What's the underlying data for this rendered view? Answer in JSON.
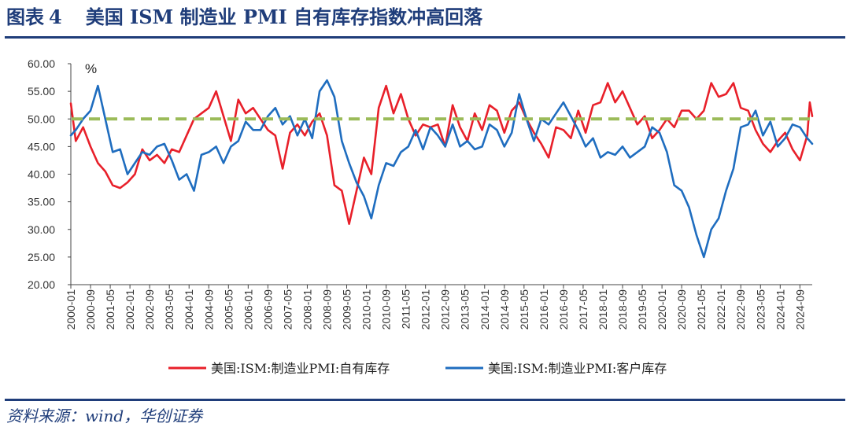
{
  "title": {
    "prefix": "图表",
    "number": "4",
    "text": "美国 ISM 制造业 PMI 自有库存指数冲高回落"
  },
  "source": "资料来源：wind，华创证券",
  "chart_data": {
    "type": "line",
    "unit_label": "%",
    "ylim": [
      20,
      60
    ],
    "y_ticks": [
      "20.00",
      "25.00",
      "30.00",
      "35.00",
      "40.00",
      "45.00",
      "50.00",
      "55.00",
      "60.00"
    ],
    "x_start": "2000-01",
    "x_end": "2025-02",
    "x_ticks": [
      "2000-01",
      "2000-09",
      "2001-05",
      "2002-01",
      "2002-09",
      "2003-05",
      "2004-01",
      "2004-09",
      "2005-05",
      "2006-01",
      "2006-09",
      "2007-05",
      "2008-01",
      "2008-09",
      "2009-05",
      "2010-01",
      "2010-09",
      "2011-05",
      "2012-01",
      "2012-09",
      "2013-05",
      "2014-01",
      "2014-09",
      "2015-05",
      "2016-01",
      "2016-09",
      "2017-05",
      "2018-01",
      "2018-09",
      "2019-05",
      "2020-01",
      "2020-09",
      "2021-05",
      "2022-01",
      "2022-09",
      "2023-05",
      "2024-01",
      "2024-09"
    ],
    "reference_line": {
      "value": 50,
      "color": "#9bbb59",
      "style": "dashed"
    },
    "legend_position": "bottom",
    "series": [
      {
        "name": "美国:ISM:制造业PMI:自有库存",
        "color": "#e8202a",
        "points": [
          [
            "2000-01",
            52.8
          ],
          [
            "2000-03",
            46.0
          ],
          [
            "2000-06",
            48.5
          ],
          [
            "2000-09",
            45.0
          ],
          [
            "2000-12",
            42.0
          ],
          [
            "2001-03",
            40.5
          ],
          [
            "2001-06",
            38.0
          ],
          [
            "2001-09",
            37.5
          ],
          [
            "2001-12",
            38.5
          ],
          [
            "2002-03",
            40.0
          ],
          [
            "2002-06",
            44.5
          ],
          [
            "2002-09",
            42.5
          ],
          [
            "2002-12",
            43.5
          ],
          [
            "2003-03",
            42.0
          ],
          [
            "2003-06",
            44.5
          ],
          [
            "2003-09",
            44.0
          ],
          [
            "2003-12",
            47.0
          ],
          [
            "2004-03",
            50.0
          ],
          [
            "2004-06",
            51.0
          ],
          [
            "2004-09",
            52.0
          ],
          [
            "2004-12",
            55.0
          ],
          [
            "2005-03",
            50.5
          ],
          [
            "2005-06",
            46.0
          ],
          [
            "2005-09",
            53.5
          ],
          [
            "2005-12",
            51.0
          ],
          [
            "2006-03",
            52.0
          ],
          [
            "2006-06",
            50.0
          ],
          [
            "2006-09",
            48.0
          ],
          [
            "2006-12",
            47.0
          ],
          [
            "2007-03",
            41.0
          ],
          [
            "2007-06",
            47.5
          ],
          [
            "2007-09",
            49.0
          ],
          [
            "2007-12",
            47.0
          ],
          [
            "2008-03",
            49.5
          ],
          [
            "2008-06",
            51.0
          ],
          [
            "2008-09",
            47.0
          ],
          [
            "2008-12",
            38.0
          ],
          [
            "2009-03",
            37.0
          ],
          [
            "2009-06",
            31.0
          ],
          [
            "2009-09",
            37.0
          ],
          [
            "2009-12",
            43.0
          ],
          [
            "2010-03",
            40.0
          ],
          [
            "2010-06",
            52.0
          ],
          [
            "2010-09",
            56.0
          ],
          [
            "2010-12",
            51.0
          ],
          [
            "2011-03",
            54.5
          ],
          [
            "2011-06",
            50.0
          ],
          [
            "2011-09",
            47.0
          ],
          [
            "2011-12",
            49.0
          ],
          [
            "2012-03",
            48.5
          ],
          [
            "2012-06",
            49.0
          ],
          [
            "2012-09",
            45.0
          ],
          [
            "2012-12",
            52.5
          ],
          [
            "2013-03",
            48.5
          ],
          [
            "2013-06",
            46.0
          ],
          [
            "2013-09",
            51.0
          ],
          [
            "2013-12",
            48.0
          ],
          [
            "2014-03",
            52.5
          ],
          [
            "2014-06",
            51.5
          ],
          [
            "2014-09",
            47.5
          ],
          [
            "2014-12",
            51.5
          ],
          [
            "2015-03",
            53.0
          ],
          [
            "2015-06",
            50.0
          ],
          [
            "2015-09",
            47.5
          ],
          [
            "2015-12",
            45.5
          ],
          [
            "2016-03",
            43.0
          ],
          [
            "2016-06",
            48.5
          ],
          [
            "2016-09",
            48.0
          ],
          [
            "2016-12",
            46.5
          ],
          [
            "2017-03",
            51.5
          ],
          [
            "2017-06",
            47.5
          ],
          [
            "2017-09",
            52.5
          ],
          [
            "2017-12",
            53.0
          ],
          [
            "2018-03",
            56.5
          ],
          [
            "2018-06",
            53.0
          ],
          [
            "2018-09",
            55.0
          ],
          [
            "2018-12",
            52.0
          ],
          [
            "2019-03",
            49.0
          ],
          [
            "2019-06",
            50.5
          ],
          [
            "2019-09",
            46.5
          ],
          [
            "2019-12",
            48.0
          ],
          [
            "2020-03",
            50.0
          ],
          [
            "2020-06",
            48.5
          ],
          [
            "2020-09",
            51.5
          ],
          [
            "2020-12",
            51.5
          ],
          [
            "2021-03",
            50.0
          ],
          [
            "2021-06",
            51.5
          ],
          [
            "2021-09",
            56.5
          ],
          [
            "2021-12",
            54.0
          ],
          [
            "2022-03",
            54.5
          ],
          [
            "2022-06",
            56.5
          ],
          [
            "2022-09",
            52.0
          ],
          [
            "2022-12",
            51.5
          ],
          [
            "2023-03",
            48.0
          ],
          [
            "2023-06",
            45.5
          ],
          [
            "2023-09",
            44.0
          ],
          [
            "2023-12",
            46.0
          ],
          [
            "2024-03",
            47.5
          ],
          [
            "2024-06",
            44.5
          ],
          [
            "2024-09",
            42.5
          ],
          [
            "2024-12",
            47.0
          ],
          [
            "2025-01",
            53.0
          ],
          [
            "2025-02",
            50.5
          ]
        ]
      },
      {
        "name": "美国:ISM:制造业PMI:客户库存",
        "color": "#1f6dbf",
        "points": [
          [
            "2000-01",
            47.0
          ],
          [
            "2000-03",
            48.0
          ],
          [
            "2000-06",
            50.0
          ],
          [
            "2000-09",
            51.5
          ],
          [
            "2000-12",
            56.0
          ],
          [
            "2001-03",
            50.0
          ],
          [
            "2001-06",
            44.0
          ],
          [
            "2001-09",
            44.5
          ],
          [
            "2001-12",
            40.0
          ],
          [
            "2002-03",
            42.0
          ],
          [
            "2002-06",
            44.0
          ],
          [
            "2002-09",
            43.5
          ],
          [
            "2002-12",
            45.0
          ],
          [
            "2003-03",
            45.5
          ],
          [
            "2003-06",
            42.5
          ],
          [
            "2003-09",
            39.0
          ],
          [
            "2003-12",
            40.0
          ],
          [
            "2004-03",
            37.0
          ],
          [
            "2004-06",
            43.5
          ],
          [
            "2004-09",
            44.0
          ],
          [
            "2004-12",
            45.0
          ],
          [
            "2005-03",
            42.0
          ],
          [
            "2005-06",
            45.0
          ],
          [
            "2005-09",
            46.0
          ],
          [
            "2005-12",
            49.5
          ],
          [
            "2006-03",
            48.0
          ],
          [
            "2006-06",
            48.0
          ],
          [
            "2006-09",
            50.5
          ],
          [
            "2006-12",
            52.0
          ],
          [
            "2007-03",
            49.0
          ],
          [
            "2007-06",
            50.5
          ],
          [
            "2007-09",
            47.0
          ],
          [
            "2007-12",
            50.0
          ],
          [
            "2008-03",
            46.5
          ],
          [
            "2008-06",
            55.0
          ],
          [
            "2008-09",
            57.0
          ],
          [
            "2008-12",
            54.0
          ],
          [
            "2009-03",
            46.0
          ],
          [
            "2009-06",
            42.0
          ],
          [
            "2009-09",
            38.5
          ],
          [
            "2009-12",
            36.0
          ],
          [
            "2010-03",
            32.0
          ],
          [
            "2010-06",
            38.0
          ],
          [
            "2010-09",
            42.0
          ],
          [
            "2010-12",
            41.5
          ],
          [
            "2011-03",
            44.0
          ],
          [
            "2011-06",
            45.0
          ],
          [
            "2011-09",
            48.0
          ],
          [
            "2011-12",
            44.5
          ],
          [
            "2012-03",
            48.5
          ],
          [
            "2012-06",
            47.0
          ],
          [
            "2012-09",
            45.0
          ],
          [
            "2012-12",
            49.0
          ],
          [
            "2013-03",
            45.0
          ],
          [
            "2013-06",
            46.0
          ],
          [
            "2013-09",
            44.5
          ],
          [
            "2013-12",
            45.0
          ],
          [
            "2014-03",
            49.0
          ],
          [
            "2014-06",
            48.0
          ],
          [
            "2014-09",
            45.0
          ],
          [
            "2014-12",
            47.5
          ],
          [
            "2015-03",
            54.5
          ],
          [
            "2015-06",
            50.0
          ],
          [
            "2015-09",
            46.0
          ],
          [
            "2015-12",
            50.0
          ],
          [
            "2016-03",
            49.0
          ],
          [
            "2016-06",
            51.0
          ],
          [
            "2016-09",
            53.0
          ],
          [
            "2016-12",
            50.5
          ],
          [
            "2017-03",
            48.0
          ],
          [
            "2017-06",
            45.0
          ],
          [
            "2017-09",
            46.5
          ],
          [
            "2017-12",
            43.0
          ],
          [
            "2018-03",
            44.0
          ],
          [
            "2018-06",
            43.5
          ],
          [
            "2018-09",
            45.0
          ],
          [
            "2018-12",
            43.0
          ],
          [
            "2019-03",
            44.0
          ],
          [
            "2019-06",
            45.0
          ],
          [
            "2019-09",
            48.5
          ],
          [
            "2019-12",
            47.5
          ],
          [
            "2020-03",
            44.0
          ],
          [
            "2020-06",
            38.0
          ],
          [
            "2020-09",
            37.0
          ],
          [
            "2020-12",
            34.0
          ],
          [
            "2021-03",
            29.0
          ],
          [
            "2021-06",
            25.0
          ],
          [
            "2021-09",
            30.0
          ],
          [
            "2021-12",
            32.0
          ],
          [
            "2022-03",
            37.0
          ],
          [
            "2022-06",
            41.0
          ],
          [
            "2022-09",
            48.5
          ],
          [
            "2022-12",
            49.0
          ],
          [
            "2023-03",
            51.5
          ],
          [
            "2023-06",
            47.0
          ],
          [
            "2023-09",
            49.5
          ],
          [
            "2023-12",
            45.0
          ],
          [
            "2024-03",
            46.5
          ],
          [
            "2024-06",
            49.0
          ],
          [
            "2024-09",
            48.5
          ],
          [
            "2024-12",
            46.5
          ],
          [
            "2025-01",
            46.0
          ],
          [
            "2025-02",
            45.5
          ]
        ]
      }
    ]
  }
}
